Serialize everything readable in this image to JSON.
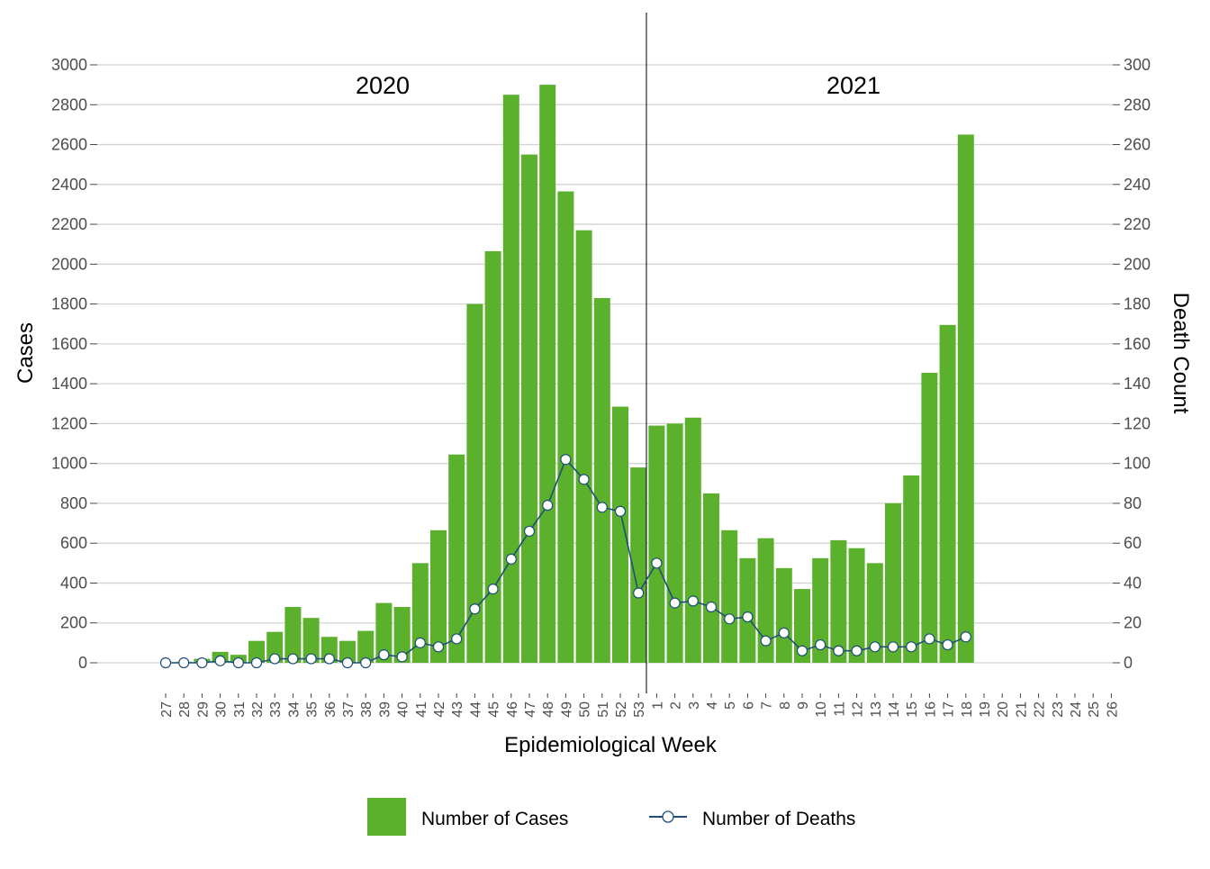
{
  "chart_data": {
    "type": "bar",
    "xlabel": "Epidemiological Week",
    "ylabel": "Cases",
    "y2label": "Death Count",
    "ylim": [
      0,
      3000
    ],
    "y2lim": [
      0,
      300
    ],
    "yticks": [
      0,
      200,
      400,
      600,
      800,
      1000,
      1200,
      1400,
      1600,
      1800,
      2000,
      2200,
      2400,
      2600,
      2800,
      3000
    ],
    "y2ticks": [
      0,
      20,
      40,
      60,
      80,
      100,
      120,
      140,
      160,
      180,
      200,
      220,
      240,
      260,
      280,
      300
    ],
    "grid": true,
    "legend_position": "bottom",
    "period_labels": [
      "2020",
      "2021"
    ],
    "categories": [
      "27",
      "28",
      "29",
      "30",
      "31",
      "32",
      "33",
      "34",
      "35",
      "36",
      "37",
      "38",
      "39",
      "40",
      "41",
      "42",
      "43",
      "44",
      "45",
      "46",
      "47",
      "48",
      "49",
      "50",
      "51",
      "52",
      "53",
      "1",
      "2",
      "3",
      "4",
      "5",
      "6",
      "7",
      "8",
      "9",
      "10",
      "11",
      "12",
      "13",
      "14",
      "15",
      "16",
      "17",
      "18",
      "19",
      "20",
      "21",
      "22",
      "23",
      "24",
      "25",
      "26"
    ],
    "series": [
      {
        "name": "Number of Cases",
        "type": "bar",
        "axis": "left",
        "color": "#5BB02C",
        "values": [
          0,
          5,
          20,
          55,
          40,
          110,
          155,
          280,
          225,
          130,
          110,
          160,
          300,
          280,
          500,
          665,
          1045,
          1800,
          2065,
          2850,
          2550,
          2900,
          2365,
          2170,
          1830,
          1285,
          980,
          1190,
          1200,
          1230,
          850,
          665,
          525,
          625,
          475,
          370,
          525,
          615,
          575,
          500,
          800,
          940,
          1455,
          1695,
          2650,
          null,
          null,
          null,
          null,
          null,
          null,
          null,
          null
        ]
      },
      {
        "name": "Number of Deaths",
        "type": "line",
        "axis": "right",
        "color": "#1F4E79",
        "values": [
          0,
          0,
          0,
          1,
          0,
          0,
          2,
          2,
          2,
          2,
          0,
          0,
          4,
          3,
          10,
          8,
          12,
          27,
          37,
          52,
          66,
          79,
          102,
          92,
          78,
          76,
          35,
          50,
          30,
          31,
          28,
          22,
          23,
          11,
          15,
          6,
          9,
          6,
          6,
          8,
          8,
          8,
          12,
          9,
          13,
          null,
          null,
          null,
          null,
          null,
          null,
          null,
          null
        ]
      }
    ]
  }
}
